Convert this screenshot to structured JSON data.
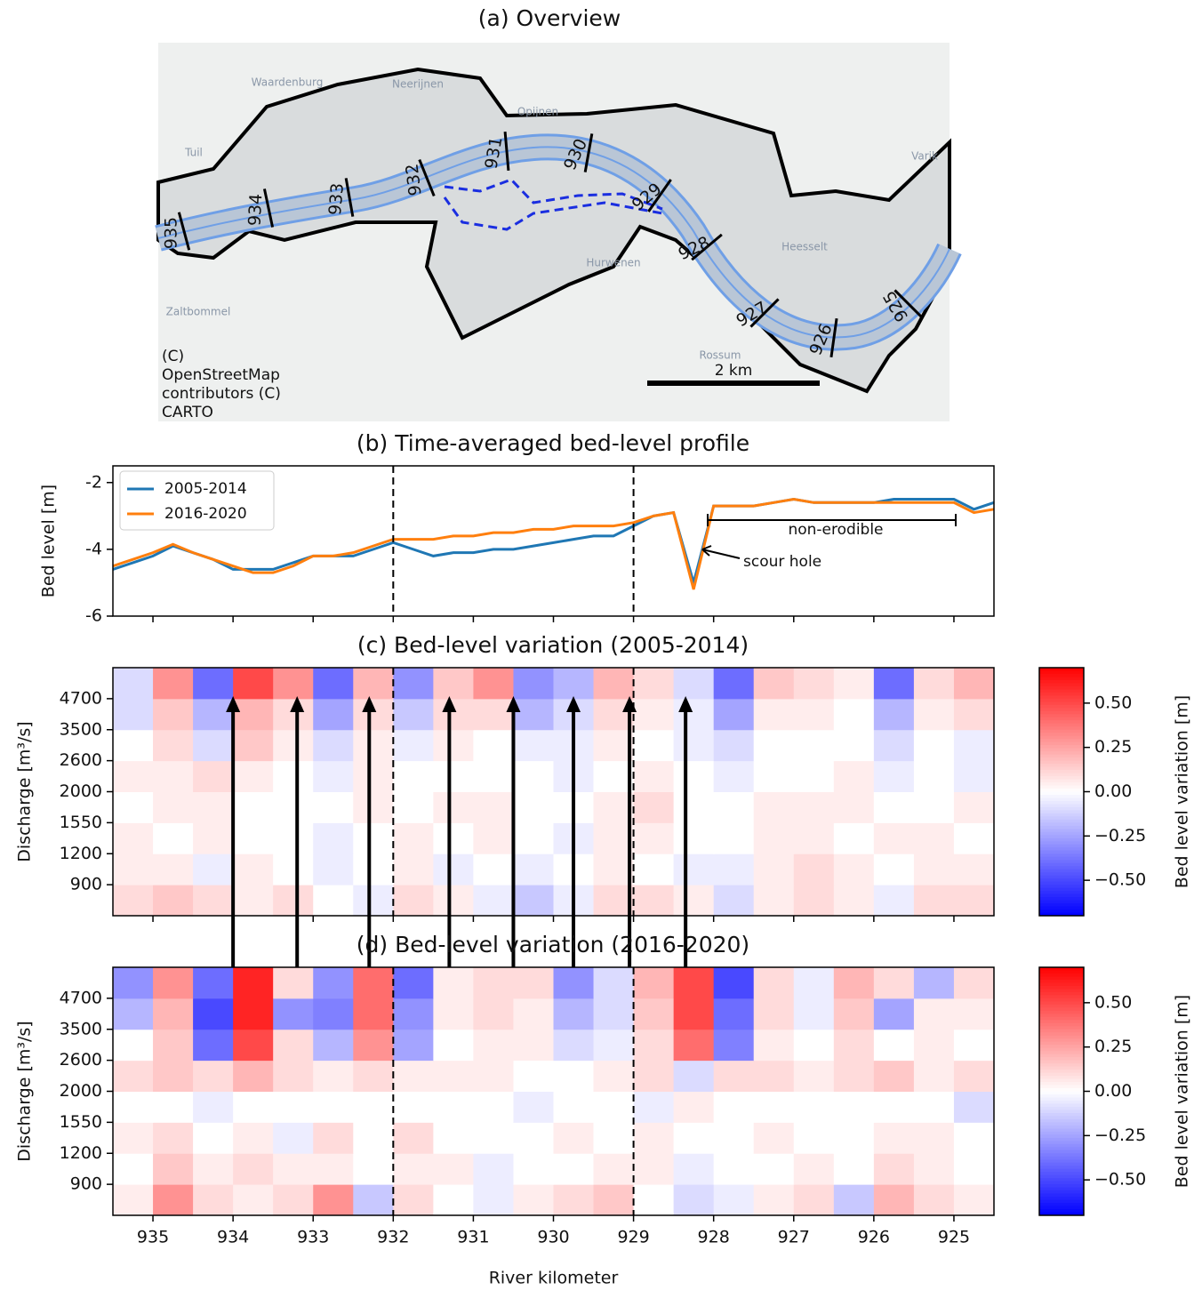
{
  "chart_data": [
    {
      "type": "map",
      "title": "(a) Overview",
      "places": [
        "Waardenburg",
        "Neerijnen",
        "Opijnen",
        "Tuil",
        "Varik",
        "Zaltbommel",
        "Hurwenen",
        "Heesselt",
        "Rossum"
      ],
      "km_labels": [
        "935",
        "934",
        "933",
        "932",
        "931",
        "930",
        "929",
        "928",
        "927",
        "926",
        "925"
      ],
      "scale_label": "2 km",
      "attribution": [
        "(C)",
        "OpenStreetMap",
        "contributors (C)",
        "CARTO"
      ]
    },
    {
      "type": "line",
      "title": "(b) Time-averaged bed-level profile",
      "ylabel": "Bed level [m]",
      "x": [
        935.5,
        935.25,
        935,
        934.75,
        934.5,
        934.25,
        934,
        933.75,
        933.5,
        933.25,
        933,
        932.75,
        932.5,
        932.25,
        932,
        931.75,
        931.5,
        931.25,
        931,
        930.75,
        930.5,
        930.25,
        930,
        929.75,
        929.5,
        929.25,
        929,
        928.75,
        928.5,
        928.25,
        928,
        927.75,
        927.5,
        927.25,
        927,
        926.75,
        926.5,
        926.25,
        926,
        925.75,
        925.5,
        925.25,
        925,
        924.75,
        924.5
      ],
      "series": [
        {
          "name": "2005-2014",
          "color": "#1f77b4",
          "values": [
            -4.6,
            -4.4,
            -4.2,
            -3.9,
            -4.1,
            -4.3,
            -4.6,
            -4.6,
            -4.6,
            -4.4,
            -4.2,
            -4.2,
            -4.2,
            -4.0,
            -3.8,
            -4.0,
            -4.2,
            -4.1,
            -4.1,
            -4.0,
            -4.0,
            -3.9,
            -3.8,
            -3.7,
            -3.6,
            -3.6,
            -3.3,
            -3.0,
            -2.9,
            -5.0,
            -2.7,
            -2.7,
            -2.7,
            -2.6,
            -2.5,
            -2.6,
            -2.6,
            -2.6,
            -2.6,
            -2.5,
            -2.5,
            -2.5,
            -2.5,
            -2.8,
            -2.6
          ]
        },
        {
          "name": "2016-2020",
          "color": "#ff7f0e",
          "values": [
            -4.5,
            -4.3,
            -4.1,
            -3.85,
            -4.1,
            -4.3,
            -4.5,
            -4.7,
            -4.7,
            -4.5,
            -4.2,
            -4.2,
            -4.1,
            -3.9,
            -3.7,
            -3.7,
            -3.7,
            -3.6,
            -3.6,
            -3.5,
            -3.5,
            -3.4,
            -3.4,
            -3.3,
            -3.3,
            -3.3,
            -3.2,
            -3.0,
            -2.9,
            -5.2,
            -2.7,
            -2.7,
            -2.7,
            -2.6,
            -2.5,
            -2.6,
            -2.6,
            -2.6,
            -2.6,
            -2.6,
            -2.6,
            -2.6,
            -2.6,
            -2.9,
            -2.8
          ]
        }
      ],
      "xlim": [
        935.5,
        924.5
      ],
      "xticks": [
        935,
        934,
        933,
        932,
        931,
        930,
        929,
        928,
        927,
        926,
        925
      ],
      "ylim": [
        -6,
        -1.5
      ],
      "yticks": [
        -2,
        -4,
        -6
      ],
      "vlines": [
        932,
        929
      ],
      "legend": "upper left",
      "annotations": [
        "non-erodible",
        "scour hole"
      ]
    },
    {
      "type": "heatmap",
      "title": "(c) Bed-level variation (2005-2014)",
      "ylabel": "Discharge [m³/s]",
      "xlim": [
        935.5,
        924.5
      ],
      "xticks": [
        935,
        934,
        933,
        932,
        931,
        930,
        929,
        928,
        927,
        926,
        925
      ],
      "vlines": [
        932,
        929
      ],
      "x_edges": [
        935.5,
        935,
        934.5,
        934,
        933.5,
        933,
        932.5,
        932,
        931.5,
        931,
        930.5,
        930,
        929.5,
        929,
        928.5,
        928,
        927.5,
        927,
        926.5,
        926,
        925.5,
        925,
        924.5
      ],
      "rows": [
        900,
        1200,
        1550,
        2000,
        2600,
        3500,
        4700,
        null
      ],
      "z": [
        [
          0.1,
          0.15,
          0.1,
          0.05,
          0.1,
          0,
          -0.05,
          0.1,
          0.05,
          -0.05,
          -0.15,
          -0.05,
          0.1,
          0.1,
          0.05,
          -0.1,
          0.05,
          0.1,
          0.05,
          -0.05,
          0.1,
          0.1
        ],
        [
          0.05,
          0.05,
          -0.05,
          0.05,
          0,
          -0.05,
          0,
          0.05,
          -0.05,
          0,
          -0.05,
          0,
          0.05,
          0,
          -0.05,
          -0.05,
          0.05,
          0.1,
          0.05,
          0,
          0.05,
          0.05
        ],
        [
          0.05,
          0,
          0.05,
          0,
          0,
          -0.05,
          0,
          0.05,
          0,
          0.05,
          0,
          -0.05,
          0.05,
          0.05,
          0,
          0,
          0.05,
          0.05,
          0,
          0.05,
          0.05,
          0
        ],
        [
          0,
          0.05,
          0.05,
          0,
          0,
          0,
          0.05,
          0,
          0.05,
          0.05,
          0,
          0,
          0.05,
          0.1,
          0,
          0,
          0.05,
          0.05,
          0.05,
          0,
          0,
          0.05
        ],
        [
          0.05,
          0.05,
          0.1,
          0.05,
          0,
          -0.05,
          0.05,
          0,
          0,
          0,
          0,
          -0.05,
          0,
          0.05,
          0,
          -0.05,
          0,
          0,
          0.05,
          -0.05,
          0,
          -0.05
        ],
        [
          0,
          0.1,
          -0.1,
          0.15,
          0.05,
          -0.1,
          0.05,
          -0.05,
          0.05,
          0,
          -0.05,
          -0.05,
          0.05,
          0,
          -0.05,
          -0.1,
          0,
          0,
          0,
          -0.1,
          0,
          -0.05
        ],
        [
          -0.1,
          0.15,
          -0.2,
          0.2,
          0.1,
          -0.25,
          0.1,
          -0.15,
          0.1,
          0.1,
          -0.2,
          -0.1,
          0.1,
          0.05,
          -0.05,
          -0.25,
          0.05,
          0.05,
          0,
          -0.2,
          0.05,
          0.1
        ],
        [
          -0.1,
          0.3,
          -0.4,
          0.5,
          0.3,
          -0.4,
          0.2,
          -0.3,
          0.15,
          0.3,
          -0.3,
          -0.2,
          0.2,
          0.1,
          -0.1,
          -0.4,
          0.15,
          0.1,
          0.05,
          -0.4,
          0.1,
          0.2
        ]
      ],
      "zlim": [
        -0.7,
        0.7
      ],
      "colorbar_label": "Bed level variation [m]",
      "colorbar_ticks": [
        {
          "value": 0.5,
          "label": "0.50"
        },
        {
          "value": 0.25,
          "label": "0.25"
        },
        {
          "value": 0,
          "label": "0.00"
        },
        {
          "value": -0.25,
          "label": "−0.25"
        },
        {
          "value": -0.5,
          "label": "−0.50"
        }
      ],
      "arrows_x": [
        934.0,
        933.2,
        932.3,
        931.3,
        930.5,
        929.75,
        929.05,
        928.35
      ]
    },
    {
      "type": "heatmap",
      "title": "(d) Bed-level variation (2016-2020)",
      "ylabel": "Discharge [m³/s]",
      "xlabel": "River kilometer",
      "xlim": [
        935.5,
        924.5
      ],
      "xticks": [
        935,
        934,
        933,
        932,
        931,
        930,
        929,
        928,
        927,
        926,
        925
      ],
      "vlines": [
        932,
        929
      ],
      "x_edges": [
        935.5,
        935,
        934.5,
        934,
        933.5,
        933,
        932.5,
        932,
        931.5,
        931,
        930.5,
        930,
        929.5,
        929,
        928.5,
        928,
        927.5,
        927,
        926.5,
        926,
        925.5,
        925,
        924.5
      ],
      "rows": [
        900,
        1200,
        1550,
        2000,
        2600,
        3500,
        4700,
        null
      ],
      "z": [
        [
          0.05,
          0.3,
          0.1,
          0.05,
          0.1,
          0.3,
          -0.15,
          0.1,
          0,
          -0.05,
          0.05,
          0.1,
          0.15,
          0,
          -0.1,
          -0.05,
          0.05,
          0.1,
          -0.15,
          0.2,
          0.1,
          0.05
        ],
        [
          0,
          0.15,
          0.05,
          0.1,
          0.05,
          0.05,
          0,
          0.05,
          0.05,
          -0.05,
          0,
          0,
          0.05,
          0.05,
          -0.05,
          0,
          0,
          0.05,
          0,
          0.1,
          0.05,
          0
        ],
        [
          0.05,
          0.1,
          0,
          0.05,
          -0.05,
          0.1,
          0,
          0.1,
          0,
          0,
          0,
          0.05,
          0,
          0.05,
          0,
          0,
          0.05,
          0,
          0,
          0.05,
          0.05,
          0
        ],
        [
          0,
          0,
          -0.05,
          0,
          0,
          0,
          0,
          0,
          0,
          0,
          -0.05,
          0,
          0,
          -0.05,
          0.05,
          0,
          0,
          0,
          0,
          0,
          0,
          -0.1
        ],
        [
          0.1,
          0.15,
          0.1,
          0.2,
          0.1,
          0.05,
          0.1,
          0.05,
          0.05,
          0.05,
          0,
          0,
          0.05,
          0.1,
          -0.1,
          0.1,
          0.1,
          0.05,
          0.1,
          0.15,
          0.05,
          0.1
        ],
        [
          0,
          0.15,
          -0.4,
          0.5,
          0.1,
          -0.2,
          0.3,
          -0.25,
          0,
          0.05,
          0.05,
          -0.1,
          -0.05,
          0.1,
          0.4,
          -0.35,
          0.05,
          0,
          0.1,
          0,
          0.05,
          0
        ],
        [
          -0.2,
          0.2,
          -0.5,
          0.6,
          -0.3,
          -0.35,
          0.4,
          -0.3,
          0.05,
          0.1,
          0.05,
          -0.2,
          -0.1,
          0.15,
          0.5,
          -0.4,
          0.1,
          -0.05,
          0.15,
          -0.25,
          0.05,
          0.05
        ],
        [
          -0.3,
          0.3,
          -0.4,
          0.6,
          0.1,
          -0.3,
          0.4,
          -0.4,
          0.05,
          0.1,
          0.1,
          -0.3,
          -0.1,
          0.2,
          0.5,
          -0.5,
          0.1,
          -0.05,
          0.2,
          0.1,
          -0.2,
          0.1
        ]
      ],
      "zlim": [
        -0.7,
        0.7
      ],
      "colorbar_label": "Bed level variation [m]",
      "colorbar_ticks": [
        {
          "value": 0.5,
          "label": "0.50"
        },
        {
          "value": 0.25,
          "label": "0.25"
        },
        {
          "value": 0,
          "label": "0.00"
        },
        {
          "value": -0.25,
          "label": "−0.25"
        },
        {
          "value": -0.5,
          "label": "−0.50"
        }
      ]
    }
  ]
}
